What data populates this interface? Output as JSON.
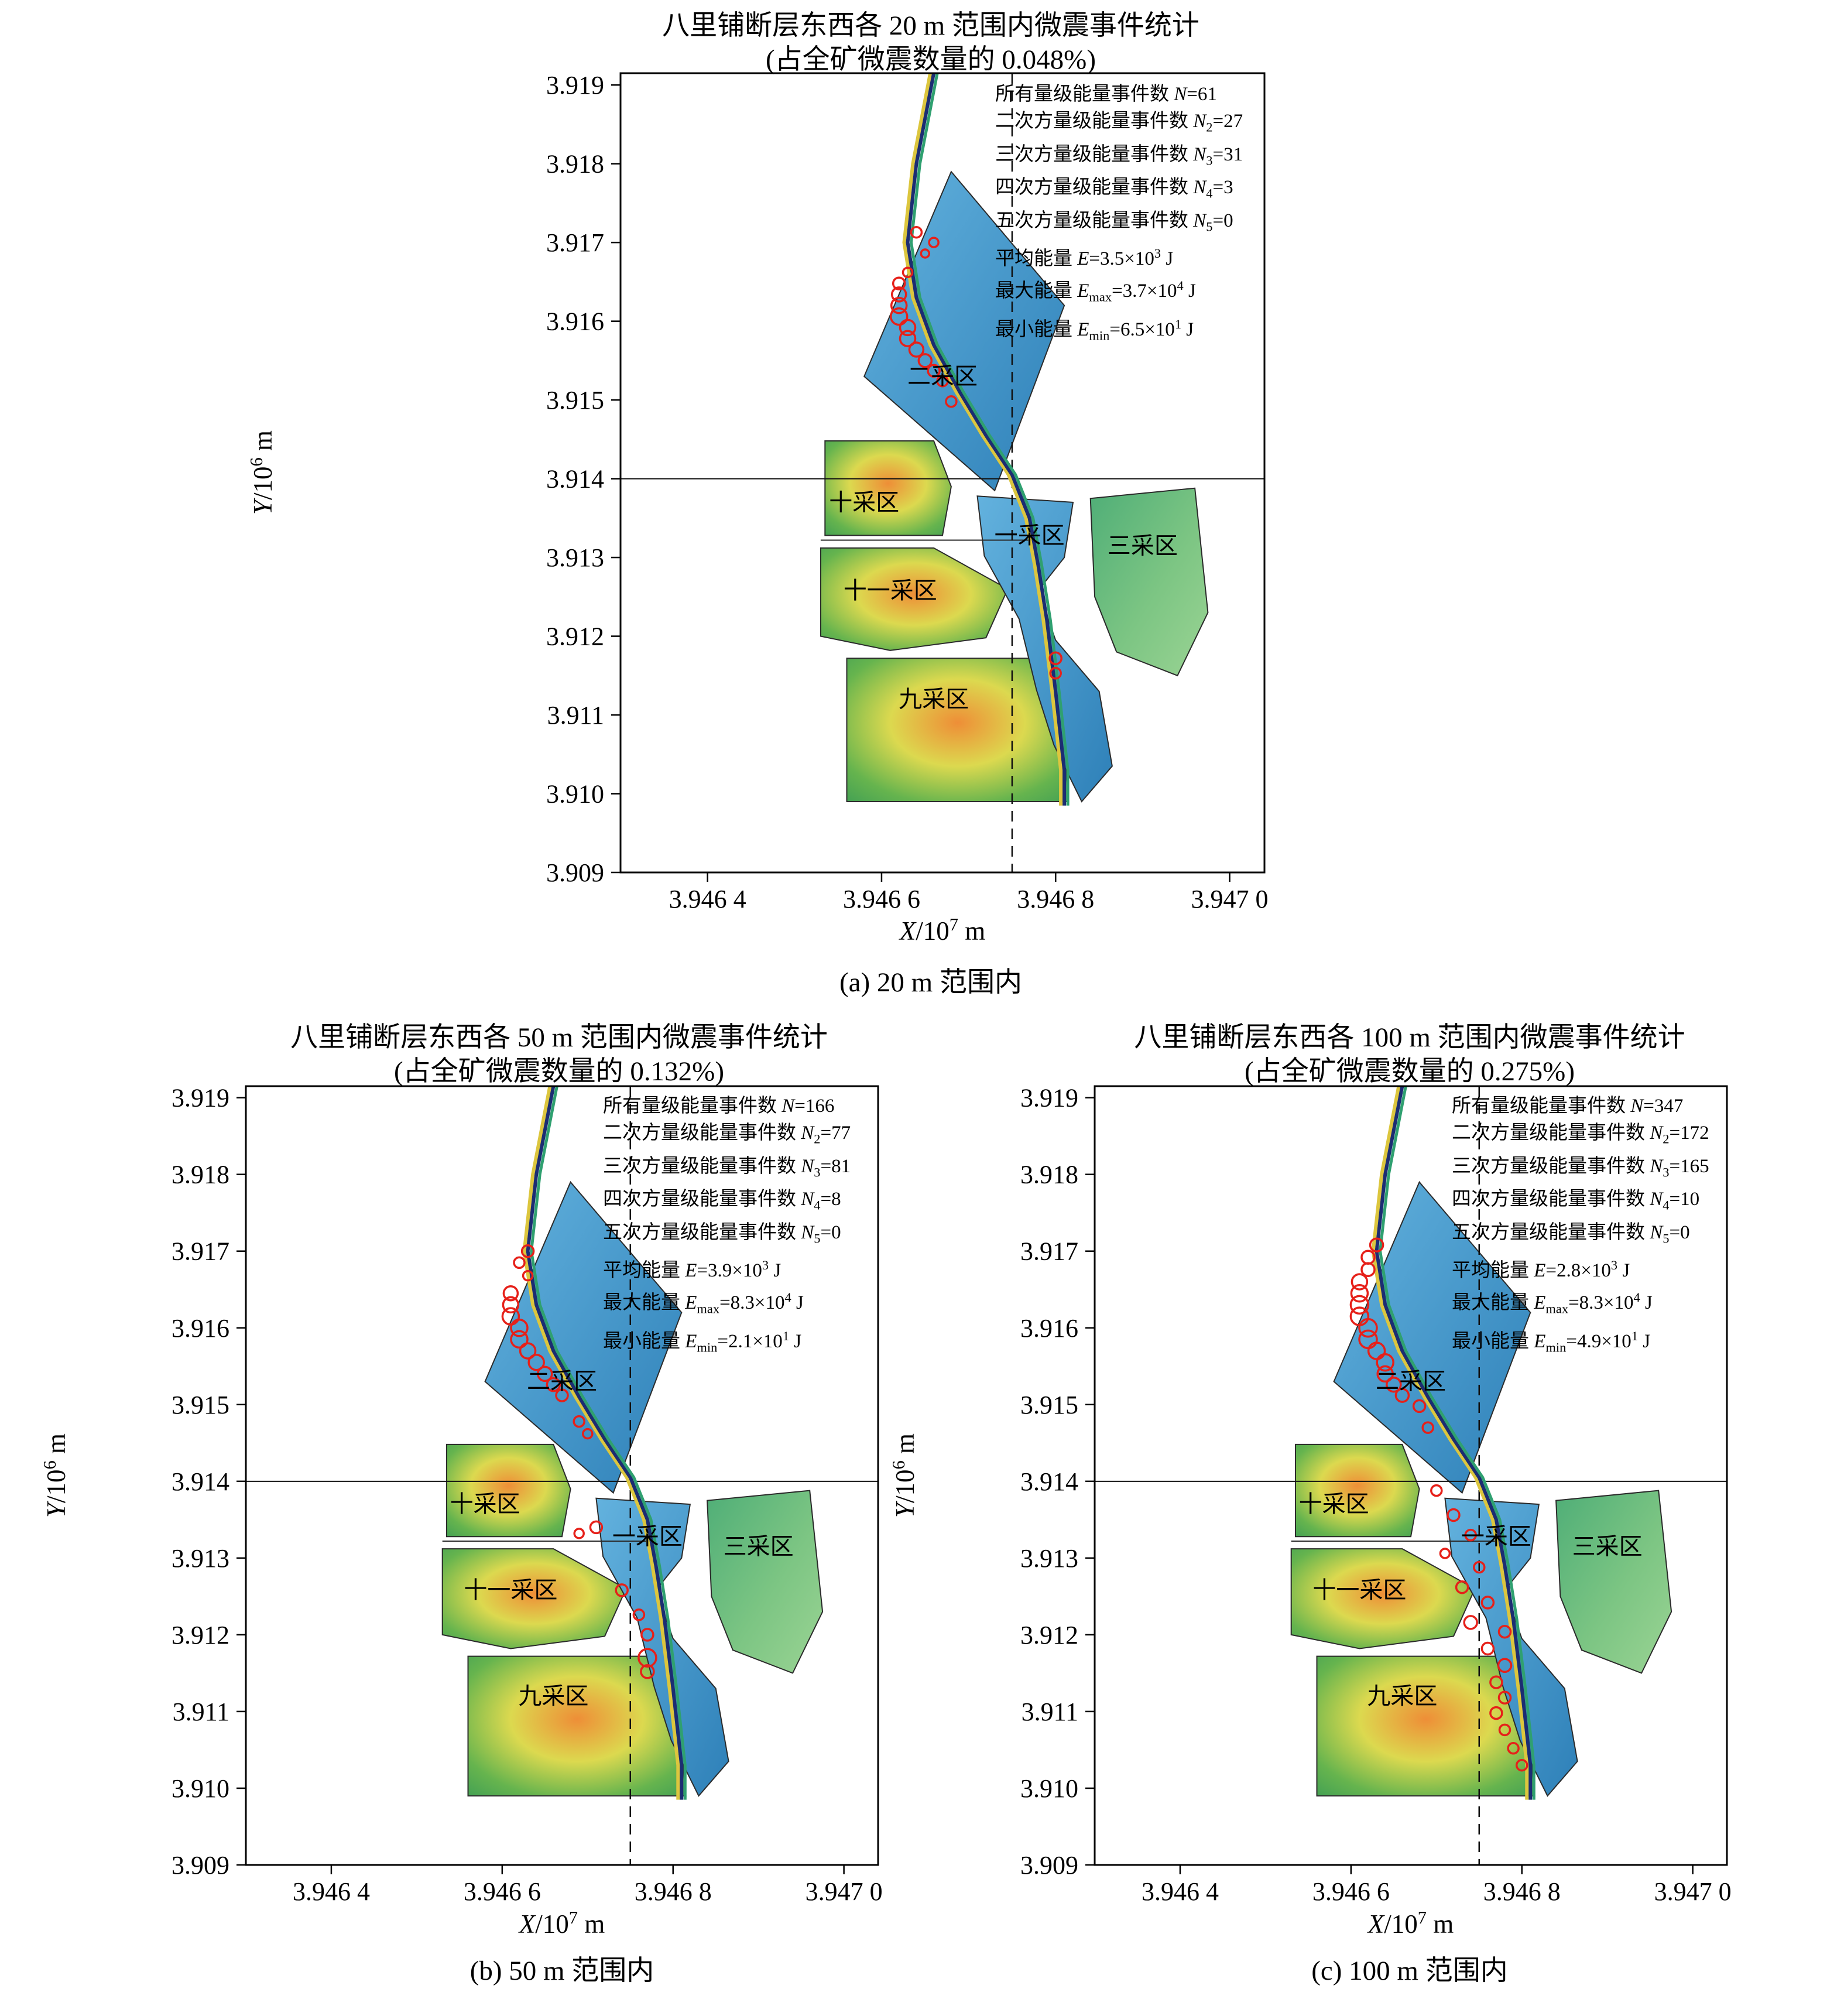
{
  "chart_data": {
    "type": "scatter",
    "description": "Microseismic event statistics near the Balipu fault, three map panels (20 m / 50 m / 100 m ranges)",
    "x_axis": {
      "label_segments": [
        {
          "i": "X"
        },
        "/10",
        {
          "sp": "7"
        },
        " m"
      ],
      "range": [
        3.9463,
        3.94704
      ],
      "ticks": [
        {
          "v": 3.9464,
          "label": "3.946 4"
        },
        {
          "v": 3.9466,
          "label": "3.946 6"
        },
        {
          "v": 3.9468,
          "label": "3.946 8"
        },
        {
          "v": 3.947,
          "label": "3.947 0"
        }
      ]
    },
    "y_axis": {
      "label_segments": [
        {
          "i": "Y"
        },
        "/10",
        {
          "sp": "6"
        },
        " m"
      ],
      "range": [
        3.909,
        3.91915
      ],
      "ticks": [
        {
          "v": 3.919,
          "label": "3.919"
        },
        {
          "v": 3.918,
          "label": "3.918"
        },
        {
          "v": 3.917,
          "label": "3.917"
        },
        {
          "v": 3.916,
          "label": "3.916"
        },
        {
          "v": 3.915,
          "label": "3.915"
        },
        {
          "v": 3.914,
          "label": "3.914"
        },
        {
          "v": 3.913,
          "label": "3.913"
        },
        {
          "v": 3.912,
          "label": "3.912"
        },
        {
          "v": 3.911,
          "label": "3.911"
        },
        {
          "v": 3.91,
          "label": "3.910"
        },
        {
          "v": 3.909,
          "label": "3.909"
        }
      ]
    },
    "crosshair": {
      "x": 3.94675,
      "y": 3.914
    },
    "colors": {
      "event": "#e62019",
      "fault_yellow": "#dcc63e",
      "fault_navy": "#1c2d72",
      "fault_green": "#2fa070"
    },
    "regions": [
      {
        "name": "二采区",
        "fill": "blue",
        "label": [
          3.94667,
          3.9152
        ],
        "points": [
          [
            3.94668,
            3.9179
          ],
          [
            3.94681,
            3.9162
          ],
          [
            3.94673,
            3.91385
          ],
          [
            3.94658,
            3.9153
          ]
        ]
      },
      {
        "name": "十采区",
        "fill": "hot",
        "label": [
          3.94658,
          3.9136
        ],
        "points": [
          [
            3.946535,
            3.91448
          ],
          [
            3.94666,
            3.91448
          ],
          [
            3.94668,
            3.9139
          ],
          [
            3.94667,
            3.91328
          ],
          [
            3.946535,
            3.91328
          ]
        ]
      },
      {
        "name": "十一采区",
        "fill": "hot",
        "label": [
          3.94661,
          3.91248
        ],
        "points": [
          [
            3.94653,
            3.91312
          ],
          [
            3.94666,
            3.91312
          ],
          [
            3.946745,
            3.9126
          ],
          [
            3.94672,
            3.91198
          ],
          [
            3.94661,
            3.91182
          ],
          [
            3.94653,
            3.912
          ]
        ]
      },
      {
        "name": "九采区",
        "fill": "hot",
        "label": [
          3.94666,
          3.9111
        ],
        "points": [
          [
            3.94656,
            3.91172
          ],
          [
            3.9468,
            3.91172
          ],
          [
            3.946815,
            3.9099
          ],
          [
            3.94656,
            3.9099
          ]
        ]
      },
      {
        "name": "一采区",
        "fill": "blue",
        "label": [
          3.94677,
          3.91318
        ],
        "points": [
          [
            3.94671,
            3.91378
          ],
          [
            3.94682,
            3.9137
          ],
          [
            3.94681,
            3.913
          ],
          [
            3.94678,
            3.91258
          ],
          [
            3.9468,
            3.91195
          ],
          [
            3.94685,
            3.9113
          ],
          [
            3.946865,
            3.91035
          ],
          [
            3.94683,
            3.9099
          ],
          [
            3.946798,
            3.91062
          ],
          [
            3.946778,
            3.91132
          ],
          [
            3.946758,
            3.91222
          ],
          [
            3.946718,
            3.91302
          ]
        ]
      },
      {
        "name": "三采区",
        "fill": "green",
        "label": [
          3.9469,
          3.91305
        ],
        "points": [
          [
            3.94684,
            3.91375
          ],
          [
            3.94696,
            3.91388
          ],
          [
            3.946975,
            3.9123
          ],
          [
            3.94694,
            3.9115
          ],
          [
            3.94687,
            3.9118
          ],
          [
            3.946845,
            3.9125
          ]
        ]
      }
    ],
    "boundary_line": {
      "from": [
        3.94653,
        3.91322
      ],
      "to": [
        3.946775,
        3.91322
      ]
    },
    "fault_points": [
      [
        3.94666,
        3.91915
      ],
      [
        3.94664,
        3.918
      ],
      [
        3.94663,
        3.917
      ],
      [
        3.94664,
        3.9163
      ],
      [
        3.94666,
        3.9157
      ],
      [
        3.94669,
        3.9151
      ],
      [
        3.94672,
        3.91455
      ],
      [
        3.94675,
        3.91405
      ],
      [
        3.94677,
        3.9135
      ],
      [
        3.94678,
        3.9129
      ],
      [
        3.94679,
        3.9122
      ],
      [
        3.9468,
        3.9113
      ],
      [
        3.94681,
        3.9103
      ],
      [
        3.94681,
        3.90985
      ]
    ],
    "panels": [
      {
        "id": "a",
        "title_line1": "八里铺断层东西各 20 m 范围内微震事件统计",
        "title_line2": "(占全矿微震数量的 0.048%)",
        "caption": "(a) 20 m 范围内",
        "stats": [
          [
            "所有量级能量事件数 ",
            {
              "i": "N"
            },
            "=61"
          ],
          [
            "二次方量级能量事件数 ",
            {
              "i": "N"
            },
            {
              "sb": "2"
            },
            "=27"
          ],
          [
            "三次方量级能量事件数 ",
            {
              "i": "N"
            },
            {
              "sb": "3"
            },
            "=31"
          ],
          [
            "四次方量级能量事件数 ",
            {
              "i": "N"
            },
            {
              "sb": "4"
            },
            "=3"
          ],
          [
            "五次方量级能量事件数 ",
            {
              "i": "N"
            },
            {
              "sb": "5"
            },
            "=0"
          ],
          [
            "平均能量 ",
            {
              "i": "E"
            },
            "=3.5×10",
            {
              "sp": "3"
            },
            " J"
          ],
          [
            "最大能量 ",
            {
              "i": "E"
            },
            {
              "sb": "max"
            },
            "=3.7×10",
            {
              "sp": "4"
            },
            " J"
          ],
          [
            "最小能量 ",
            {
              "i": "E"
            },
            {
              "sb": "min"
            },
            "=6.5×10",
            {
              "sp": "1"
            },
            " J"
          ]
        ],
        "events": [
          [
            3.94664,
            3.91713,
            9
          ],
          [
            3.94666,
            3.917,
            8
          ],
          [
            3.94665,
            3.91686,
            7
          ],
          [
            3.94663,
            3.91662,
            8
          ],
          [
            3.94662,
            3.91648,
            10
          ],
          [
            3.94662,
            3.91634,
            12
          ],
          [
            3.94662,
            3.9162,
            13
          ],
          [
            3.94662,
            3.91606,
            14
          ],
          [
            3.94663,
            3.91592,
            13
          ],
          [
            3.94663,
            3.91578,
            13
          ],
          [
            3.94664,
            3.91564,
            12
          ],
          [
            3.94665,
            3.9155,
            11
          ],
          [
            3.94666,
            3.91537,
            10
          ],
          [
            3.94667,
            3.91524,
            9
          ],
          [
            3.94668,
            3.91498,
            9
          ],
          [
            3.9468,
            3.91172,
            10
          ],
          [
            3.9468,
            3.91153,
            9
          ]
        ]
      },
      {
        "id": "b",
        "title_line1": "八里铺断层东西各 50 m 范围内微震事件统计",
        "title_line2": "(占全矿微震数量的 0.132%)",
        "caption": "(b) 50 m 范围内",
        "stats": [
          [
            "所有量级能量事件数 ",
            {
              "i": "N"
            },
            "=166"
          ],
          [
            "二次方量级能量事件数 ",
            {
              "i": "N"
            },
            {
              "sb": "2"
            },
            "=77"
          ],
          [
            "三次方量级能量事件数 ",
            {
              "i": "N"
            },
            {
              "sb": "3"
            },
            "=81"
          ],
          [
            "四次方量级能量事件数 ",
            {
              "i": "N"
            },
            {
              "sb": "4"
            },
            "=8"
          ],
          [
            "五次方量级能量事件数 ",
            {
              "i": "N"
            },
            {
              "sb": "5"
            },
            "=0"
          ],
          [
            "平均能量 ",
            {
              "i": "E"
            },
            "=3.9×10",
            {
              "sp": "3"
            },
            " J"
          ],
          [
            "最大能量 ",
            {
              "i": "E"
            },
            {
              "sb": "max"
            },
            "=8.3×10",
            {
              "sp": "4"
            },
            " J"
          ],
          [
            "最小能量 ",
            {
              "i": "E"
            },
            {
              "sb": "min"
            },
            "=2.1×10",
            {
              "sp": "1"
            },
            " J"
          ]
        ],
        "events": [
          [
            3.94663,
            3.917,
            10
          ],
          [
            3.94662,
            3.91685,
            9
          ],
          [
            3.94663,
            3.91668,
            8
          ],
          [
            3.94661,
            3.91645,
            12
          ],
          [
            3.94661,
            3.9163,
            13
          ],
          [
            3.94661,
            3.91615,
            14
          ],
          [
            3.94662,
            3.916,
            14
          ],
          [
            3.94662,
            3.91585,
            14
          ],
          [
            3.94663,
            3.9157,
            13
          ],
          [
            3.94664,
            3.91555,
            13
          ],
          [
            3.94665,
            3.9154,
            12
          ],
          [
            3.94666,
            3.91526,
            11
          ],
          [
            3.94667,
            3.91512,
            10
          ],
          [
            3.94669,
            3.91478,
            9
          ],
          [
            3.9467,
            3.91462,
            8
          ],
          [
            3.94671,
            3.9134,
            10
          ],
          [
            3.94669,
            3.91332,
            8
          ],
          [
            3.94674,
            3.91258,
            10
          ],
          [
            3.94676,
            3.91226,
            9
          ],
          [
            3.94677,
            3.912,
            10
          ],
          [
            3.94677,
            3.9117,
            15
          ],
          [
            3.94677,
            3.91152,
            11
          ]
        ]
      },
      {
        "id": "c",
        "title_line1": "八里铺断层东西各 100 m 范围内微震事件统计",
        "title_line2": "(占全矿微震数量的 0.275%)",
        "caption": "(c) 100 m 范围内",
        "stats": [
          [
            "所有量级能量事件数 ",
            {
              "i": "N"
            },
            "=347"
          ],
          [
            "二次方量级能量事件数 ",
            {
              "i": "N"
            },
            {
              "sb": "2"
            },
            "=172"
          ],
          [
            "三次方量级能量事件数 ",
            {
              "i": "N"
            },
            {
              "sb": "3"
            },
            "=165"
          ],
          [
            "四次方量级能量事件数 ",
            {
              "i": "N"
            },
            {
              "sb": "4"
            },
            "=10"
          ],
          [
            "五次方量级能量事件数 ",
            {
              "i": "N"
            },
            {
              "sb": "5"
            },
            "=0"
          ],
          [
            "平均能量 ",
            {
              "i": "E"
            },
            "=2.8×10",
            {
              "sp": "3"
            },
            " J"
          ],
          [
            "最大能量 ",
            {
              "i": "E"
            },
            {
              "sb": "max"
            },
            "=8.3×10",
            {
              "sp": "4"
            },
            " J"
          ],
          [
            "最小能量 ",
            {
              "i": "E"
            },
            {
              "sb": "min"
            },
            "=4.9×10",
            {
              "sp": "1"
            },
            " J"
          ]
        ],
        "events": [
          [
            3.94663,
            3.91708,
            11
          ],
          [
            3.94662,
            3.91692,
            11
          ],
          [
            3.94662,
            3.91676,
            11
          ],
          [
            3.94661,
            3.9166,
            13
          ],
          [
            3.94661,
            3.91645,
            14
          ],
          [
            3.94661,
            3.9163,
            15
          ],
          [
            3.94661,
            3.91615,
            15
          ],
          [
            3.94662,
            3.916,
            15
          ],
          [
            3.94662,
            3.91585,
            15
          ],
          [
            3.94663,
            3.9157,
            14
          ],
          [
            3.94664,
            3.91555,
            14
          ],
          [
            3.94664,
            3.9154,
            13
          ],
          [
            3.94665,
            3.91526,
            12
          ],
          [
            3.94666,
            3.91512,
            11
          ],
          [
            3.94668,
            3.91498,
            10
          ],
          [
            3.94669,
            3.9147,
            9
          ],
          [
            3.9467,
            3.91388,
            9
          ],
          [
            3.94672,
            3.91356,
            10
          ],
          [
            3.94674,
            3.9133,
            9
          ],
          [
            3.94671,
            3.91306,
            8
          ],
          [
            3.94675,
            3.91288,
            9
          ],
          [
            3.94673,
            3.91262,
            10
          ],
          [
            3.94676,
            3.91242,
            10
          ],
          [
            3.94674,
            3.91216,
            11
          ],
          [
            3.94678,
            3.91204,
            10
          ],
          [
            3.94676,
            3.91182,
            10
          ],
          [
            3.94678,
            3.9116,
            11
          ],
          [
            3.94677,
            3.91138,
            10
          ],
          [
            3.94678,
            3.91118,
            10
          ],
          [
            3.94677,
            3.91098,
            10
          ],
          [
            3.94678,
            3.91076,
            9
          ],
          [
            3.94679,
            3.91052,
            9
          ],
          [
            3.9468,
            3.9103,
            9
          ]
        ]
      }
    ]
  }
}
